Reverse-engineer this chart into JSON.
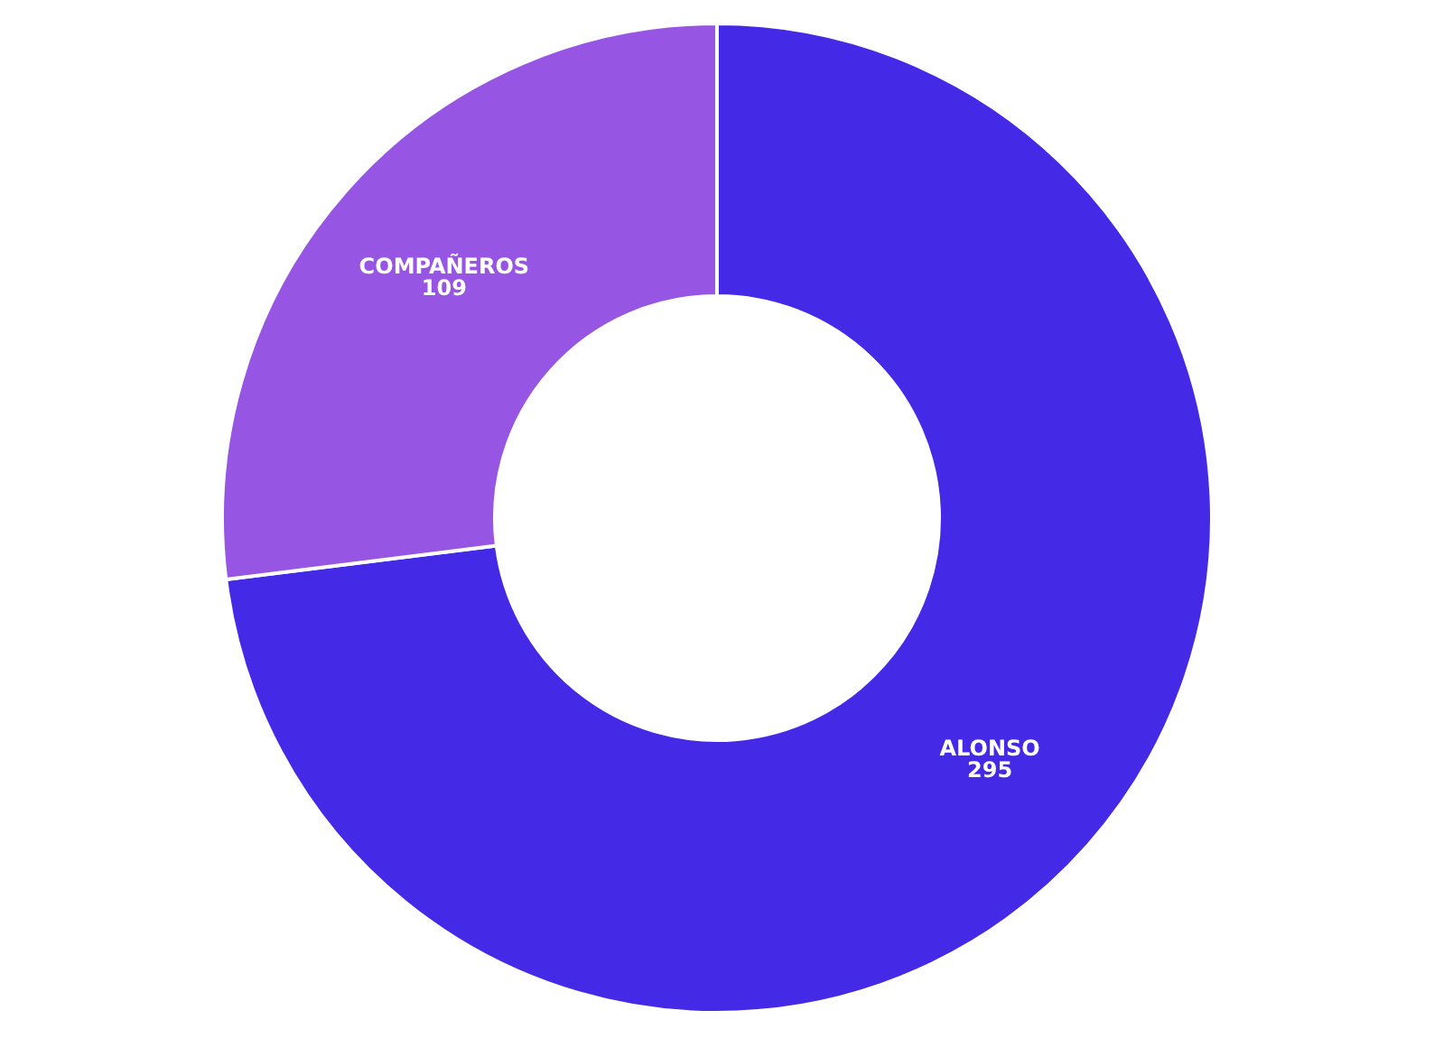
{
  "chart_data": {
    "type": "donut",
    "categories": [
      "ALONSO",
      "COMPAÑEROS"
    ],
    "values": [
      295,
      109
    ],
    "colors": [
      "#4429e6",
      "#9655e2"
    ],
    "data_labels": true
  }
}
